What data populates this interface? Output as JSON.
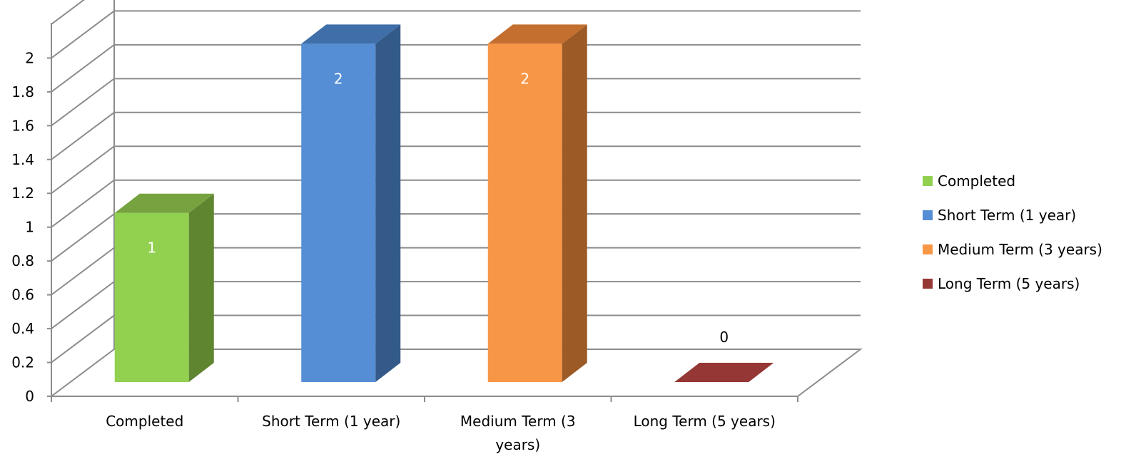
{
  "chart_data": {
    "type": "bar",
    "categories": [
      "Completed",
      "Short Term (1 year)",
      "Medium Term (3 years)",
      "Long Term (5 years)"
    ],
    "category_labels": [
      [
        "Completed"
      ],
      [
        "Short Term (1 year)"
      ],
      [
        "Medium Term (3",
        "years)"
      ],
      [
        "Long Term (5 years)"
      ]
    ],
    "values": [
      1,
      2,
      2,
      0
    ],
    "data_labels": [
      "1",
      "2",
      "2",
      "0"
    ],
    "yticks": [
      "0",
      "0.2",
      "0.4",
      "0.6",
      "0.8",
      "1",
      "1.2",
      "1.4",
      "1.6",
      "1.8",
      "2"
    ],
    "ylim": [
      0,
      2.2
    ],
    "title": "",
    "xlabel": "",
    "ylabel": "",
    "style": "3d-column",
    "grid": true,
    "legend_position": "right",
    "colors": [
      {
        "front": "#92d050",
        "top": "#76a33f",
        "side": "#5f8530"
      },
      {
        "front": "#558ed5",
        "top": "#3f6ea8",
        "side": "#335a88"
      },
      {
        "front": "#f79646",
        "top": "#c46f2f",
        "side": "#9c5a26"
      },
      {
        "front": "#953735",
        "top": "#953735",
        "side": "#7a2c2a"
      }
    ],
    "label_colors": [
      "#ffffff",
      "#ffffff",
      "#ffffff",
      "#000000"
    ]
  },
  "legend": {
    "items": [
      {
        "label": "Completed",
        "color": "#92d050"
      },
      {
        "label": "Short Term (1 year)",
        "color": "#558ed5"
      },
      {
        "label": "Medium Term (3 years)",
        "color": "#f79646"
      },
      {
        "label": "Long Term (5 years)",
        "color": "#953735"
      }
    ]
  }
}
